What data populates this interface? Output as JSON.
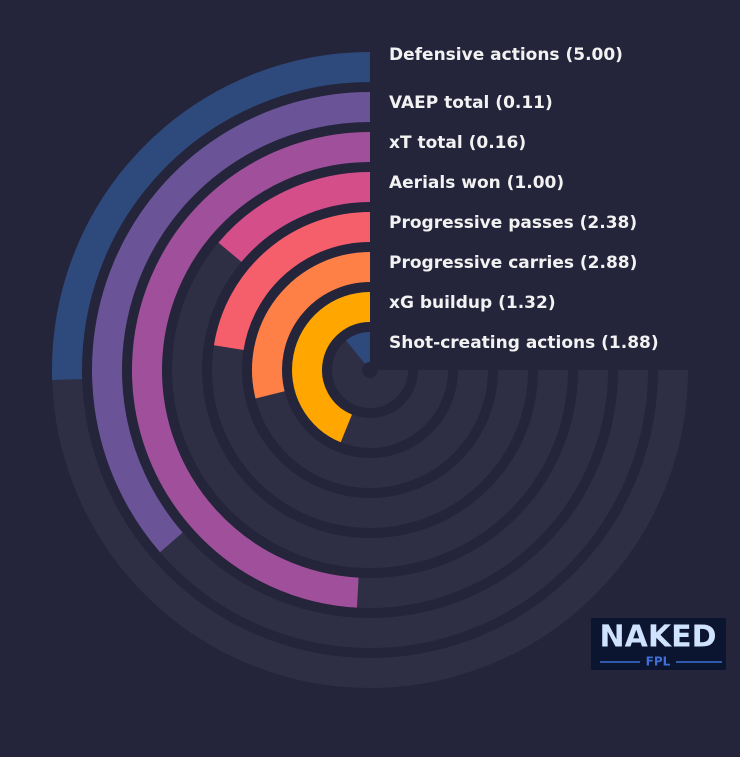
{
  "chart_data": {
    "type": "radial_bar",
    "categories": [
      "Defensive actions (5.00)",
      "VAEP total (0.11)",
      "xT total (0.16)",
      "Aerials won (1.00)",
      "Progressive passes (2.38)",
      "Progressive carries (2.88)",
      "xG buildup (1.32)",
      "Shot-creating actions (1.88)"
    ],
    "values": [
      34,
      48.5,
      65.5,
      18.5,
      30,
      38.5,
      58.5,
      14.5
    ],
    "colors": [
      "#2e4a7d",
      "#6a5396",
      "#a0509a",
      "#d44e8a",
      "#f55f6b",
      "#ff8046",
      "#ffa600",
      "#2e4a7d"
    ],
    "ylim": [
      0,
      100
    ]
  },
  "logo": {
    "line1": "NAKED",
    "line2": "FPL"
  }
}
